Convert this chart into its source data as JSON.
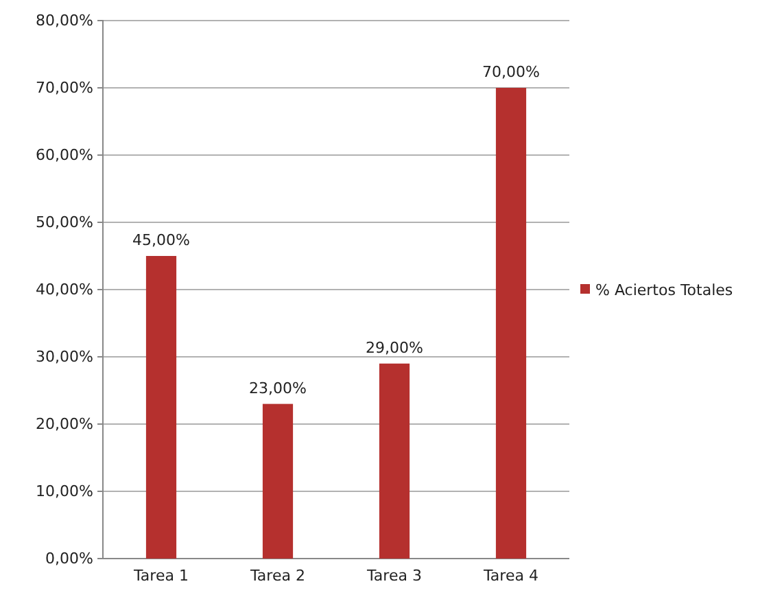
{
  "chart_data": {
    "type": "bar",
    "categories": [
      "Tarea 1",
      "Tarea 2",
      "Tarea 3",
      "Tarea 4"
    ],
    "series": [
      {
        "name": "% Aciertos Totales",
        "color": "#b5302e",
        "values": [
          45,
          23,
          29,
          70
        ],
        "value_labels": [
          "45,00%",
          "23,00%",
          "29,00%",
          "70,00%"
        ]
      }
    ],
    "ylim": [
      0,
      80
    ],
    "yticks": [
      {
        "value": 0,
        "label": "0,00%"
      },
      {
        "value": 10,
        "label": "10,00%"
      },
      {
        "value": 20,
        "label": "20,00%"
      },
      {
        "value": 30,
        "label": "30,00%"
      },
      {
        "value": 40,
        "label": "40,00%"
      },
      {
        "value": 50,
        "label": "50,00%"
      },
      {
        "value": 60,
        "label": "60,00%"
      },
      {
        "value": 70,
        "label": "70,00%"
      },
      {
        "value": 80,
        "label": "80,00%"
      }
    ],
    "grid": "y",
    "legend": "right"
  }
}
